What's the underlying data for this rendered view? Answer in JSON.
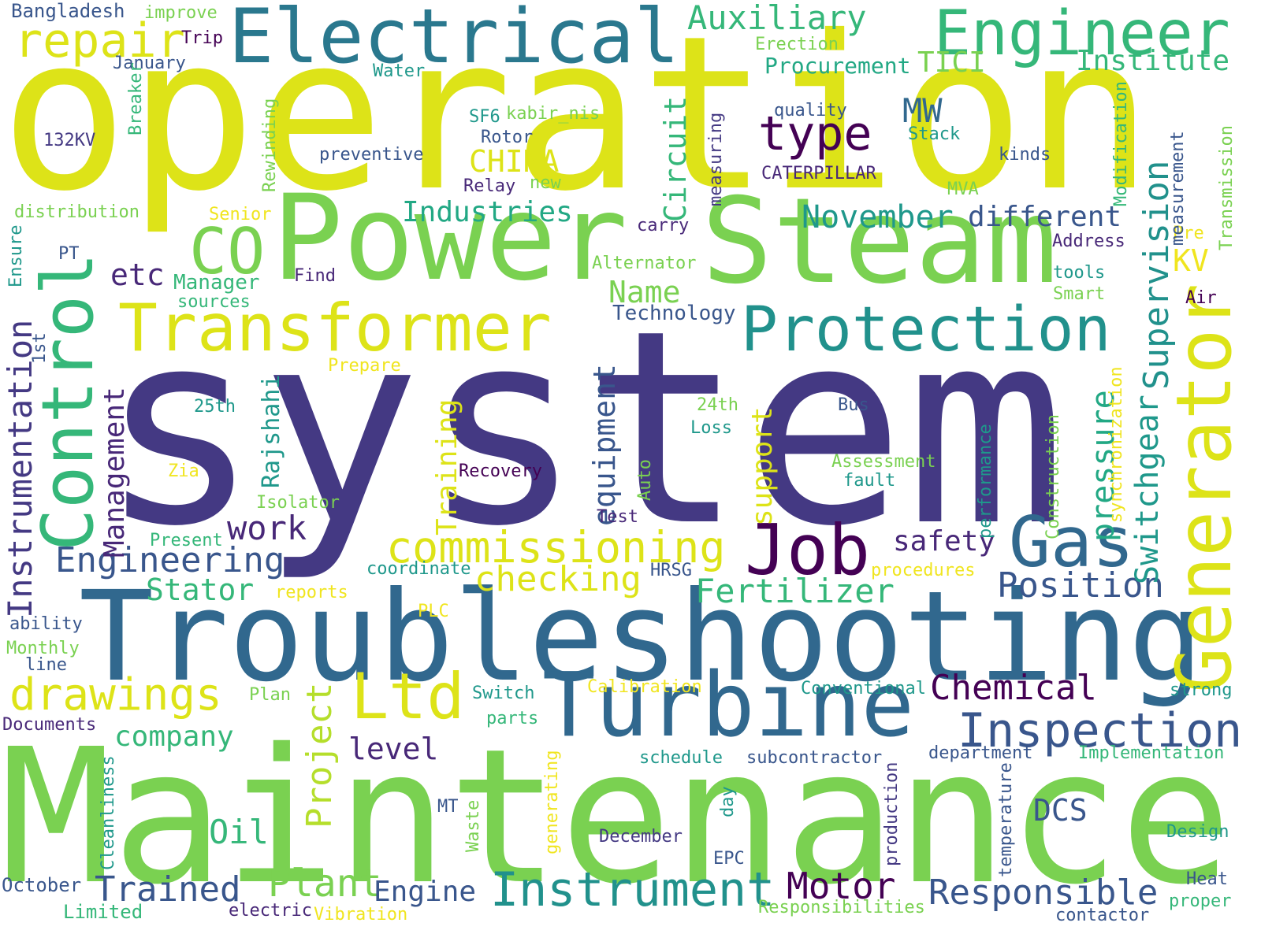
{
  "palette": {
    "background": "#ffffff",
    "yellow": "#dde318",
    "yellow_bright": "#f0e51f",
    "lime": "#b5de2b",
    "light_green": "#7ad151",
    "green": "#4ac16d",
    "mint": "#35b779",
    "teal_green": "#22a884",
    "teal": "#1f988b",
    "cyan_dark": "#21918c",
    "blue_teal": "#2a788e",
    "steel": "#31688e",
    "slate": "#39568c",
    "indigo": "#443983",
    "dark_purple": "#440154",
    "purple": "#482878"
  },
  "words": [
    {
      "text": "operation",
      "color": "yellow"
    },
    {
      "text": "system",
      "color": "indigo"
    },
    {
      "text": "Maintenance",
      "color": "light_green"
    },
    {
      "text": "Troubleshooting",
      "color": "steel"
    },
    {
      "text": "Power",
      "color": "light_green"
    },
    {
      "text": "Steam",
      "color": "light_green"
    },
    {
      "text": "Electrical",
      "color": "blue_teal"
    },
    {
      "text": "Engineer",
      "color": "mint"
    },
    {
      "text": "Turbine",
      "color": "steel"
    },
    {
      "text": "Transformer",
      "color": "yellow"
    },
    {
      "text": "Protection",
      "color": "cyan_dark"
    },
    {
      "text": "Control",
      "color": "mint"
    },
    {
      "text": "Generator",
      "color": "yellow"
    },
    {
      "text": "Job",
      "color": "dark_purple"
    },
    {
      "text": "Gas",
      "color": "steel"
    },
    {
      "text": "Ltd",
      "color": "yellow"
    },
    {
      "text": "Instrument",
      "color": "cyan_dark"
    },
    {
      "text": "commissioning",
      "color": "yellow"
    },
    {
      "text": "Inspection",
      "color": "slate"
    },
    {
      "text": "CO",
      "color": "light_green"
    },
    {
      "text": "repair",
      "color": "yellow"
    },
    {
      "text": "drawings",
      "color": "yellow"
    },
    {
      "text": "Auxiliary",
      "color": "mint"
    },
    {
      "text": "Responsible",
      "color": "slate"
    },
    {
      "text": "Position",
      "color": "slate"
    },
    {
      "text": "type",
      "color": "dark_purple"
    },
    {
      "text": "Motor",
      "color": "dark_purple"
    },
    {
      "text": "Trained",
      "color": "slate"
    },
    {
      "text": "Plant",
      "color": "light_green"
    },
    {
      "text": "Chemical",
      "color": "dark_purple"
    },
    {
      "text": "Fertilizer",
      "color": "mint"
    },
    {
      "text": "Engineering",
      "color": "slate"
    },
    {
      "text": "Instrumentation",
      "color": "indigo"
    },
    {
      "text": "checking",
      "color": "yellow"
    },
    {
      "text": "Supervision",
      "color": "cyan_dark"
    },
    {
      "text": "Switchgear",
      "color": "teal"
    },
    {
      "text": "pressure",
      "color": "teal_green"
    },
    {
      "text": "Project",
      "color": "lime"
    },
    {
      "text": "Circuit",
      "color": "mint"
    },
    {
      "text": "Management",
      "color": "purple"
    },
    {
      "text": "equipment",
      "color": "slate"
    },
    {
      "text": "Industries",
      "color": "teal_green"
    },
    {
      "text": "November",
      "color": "teal"
    },
    {
      "text": "different",
      "color": "slate"
    },
    {
      "text": "Stator",
      "color": "mint"
    },
    {
      "text": "company",
      "color": "mint"
    },
    {
      "text": "Engine",
      "color": "slate"
    },
    {
      "text": "Institute",
      "color": "mint"
    },
    {
      "text": "TICI",
      "color": "light_green"
    },
    {
      "text": "Procurement",
      "color": "teal_green"
    },
    {
      "text": "work",
      "color": "purple"
    },
    {
      "text": "safety",
      "color": "purple"
    },
    {
      "text": "level",
      "color": "purple"
    },
    {
      "text": "Oil",
      "color": "mint"
    },
    {
      "text": "DCS",
      "color": "slate"
    },
    {
      "text": "MW",
      "color": "steel"
    },
    {
      "text": "KV",
      "color": "yellow_bright"
    },
    {
      "text": "Name",
      "color": "light_green"
    },
    {
      "text": "CHINA",
      "color": "yellow"
    },
    {
      "text": "etc",
      "color": "purple"
    },
    {
      "text": "support",
      "color": "yellow"
    },
    {
      "text": "Training",
      "color": "yellow"
    },
    {
      "text": "Rajshahi",
      "color": "teal"
    },
    {
      "text": "Technology",
      "color": "slate"
    },
    {
      "text": "Manager",
      "color": "mint"
    },
    {
      "text": "Bangladesh",
      "color": "slate"
    },
    {
      "text": "improve",
      "color": "light_green"
    },
    {
      "text": "Trip",
      "color": "dark_purple"
    },
    {
      "text": "January",
      "color": "slate"
    },
    {
      "text": "Erection",
      "color": "light_green"
    },
    {
      "text": "Water",
      "color": "teal"
    },
    {
      "text": "quality",
      "color": "slate"
    },
    {
      "text": "kabir_nis",
      "color": "light_green"
    },
    {
      "text": "SF6",
      "color": "teal"
    },
    {
      "text": "Rotor",
      "color": "slate"
    },
    {
      "text": "Stack",
      "color": "teal"
    },
    {
      "text": "132KV",
      "color": "indigo"
    },
    {
      "text": "preventive",
      "color": "slate"
    },
    {
      "text": "kinds",
      "color": "slate"
    },
    {
      "text": "CATERPILLAR",
      "color": "purple"
    },
    {
      "text": "Relay",
      "color": "purple"
    },
    {
      "text": "new",
      "color": "light_green"
    },
    {
      "text": "MVA",
      "color": "light_green"
    },
    {
      "text": "distribution",
      "color": "light_green"
    },
    {
      "text": "Senior",
      "color": "yellow_bright"
    },
    {
      "text": "carry",
      "color": "purple"
    },
    {
      "text": "Address",
      "color": "purple"
    },
    {
      "text": "Pre",
      "color": "yellow_bright"
    },
    {
      "text": "PT",
      "color": "slate"
    },
    {
      "text": "Find",
      "color": "purple"
    },
    {
      "text": "Alternator",
      "color": "light_green"
    },
    {
      "text": "tools",
      "color": "teal"
    },
    {
      "text": "sources",
      "color": "mint"
    },
    {
      "text": "Smart",
      "color": "light_green"
    },
    {
      "text": "Air",
      "color": "dark_purple"
    },
    {
      "text": "Prepare",
      "color": "yellow_bright"
    },
    {
      "text": "25th",
      "color": "teal"
    },
    {
      "text": "24th",
      "color": "light_green"
    },
    {
      "text": "Bus",
      "color": "slate"
    },
    {
      "text": "Loss",
      "color": "teal"
    },
    {
      "text": "Zia",
      "color": "yellow_bright"
    },
    {
      "text": "Recovery",
      "color": "dark_purple"
    },
    {
      "text": "Assessment",
      "color": "light_green"
    },
    {
      "text": "fault",
      "color": "teal"
    },
    {
      "text": "Isolator",
      "color": "light_green"
    },
    {
      "text": "Test",
      "color": "purple"
    },
    {
      "text": "Present",
      "color": "mint"
    },
    {
      "text": "coordinate",
      "color": "teal"
    },
    {
      "text": "HRSG",
      "color": "slate"
    },
    {
      "text": "procedures",
      "color": "yellow_bright"
    },
    {
      "text": "reports",
      "color": "yellow_bright"
    },
    {
      "text": "PLC",
      "color": "yellow_bright"
    },
    {
      "text": "ability",
      "color": "slate"
    },
    {
      "text": "Monthly",
      "color": "light_green"
    },
    {
      "text": "line",
      "color": "slate"
    },
    {
      "text": "Calibration",
      "color": "yellow_bright"
    },
    {
      "text": "Conventional",
      "color": "teal"
    },
    {
      "text": "strong",
      "color": "teal"
    },
    {
      "text": "Plan",
      "color": "light_green"
    },
    {
      "text": "Switch",
      "color": "teal"
    },
    {
      "text": "parts",
      "color": "mint"
    },
    {
      "text": "Documents",
      "color": "purple"
    },
    {
      "text": "schedule",
      "color": "teal"
    },
    {
      "text": "subcontractor",
      "color": "slate"
    },
    {
      "text": "department",
      "color": "slate"
    },
    {
      "text": "Implementation",
      "color": "mint"
    },
    {
      "text": "MT",
      "color": "slate"
    },
    {
      "text": "December",
      "color": "indigo"
    },
    {
      "text": "Design",
      "color": "teal"
    },
    {
      "text": "EPC",
      "color": "slate"
    },
    {
      "text": "October",
      "color": "slate"
    },
    {
      "text": "Heat",
      "color": "slate"
    },
    {
      "text": "proper",
      "color": "mint"
    },
    {
      "text": "Limited",
      "color": "mint"
    },
    {
      "text": "electric",
      "color": "purple"
    },
    {
      "text": "Vibration",
      "color": "yellow_bright"
    },
    {
      "text": "Responsibilities",
      "color": "light_green"
    },
    {
      "text": "contactor",
      "color": "slate"
    },
    {
      "text": "Rewinding",
      "color": "light_green"
    },
    {
      "text": "Breaker",
      "color": "mint"
    },
    {
      "text": "measuring",
      "color": "indigo"
    },
    {
      "text": "Modification",
      "color": "mint"
    },
    {
      "text": "measurement",
      "color": "slate"
    },
    {
      "text": "Transmission",
      "color": "light_green"
    },
    {
      "text": "Ensure",
      "color": "teal"
    },
    {
      "text": "1st",
      "color": "slate"
    },
    {
      "text": "synchronization",
      "color": "yellow_bright"
    },
    {
      "text": "performance",
      "color": "teal"
    },
    {
      "text": "Construction",
      "color": "light_green"
    },
    {
      "text": "Auto",
      "color": "light_green"
    },
    {
      "text": "Cleanliness",
      "color": "teal"
    },
    {
      "text": "Waste",
      "color": "light_green"
    },
    {
      "text": "generating",
      "color": "yellow_bright"
    },
    {
      "text": "day",
      "color": "teal"
    },
    {
      "text": "production",
      "color": "indigo"
    },
    {
      "text": "temperature",
      "color": "slate"
    }
  ]
}
